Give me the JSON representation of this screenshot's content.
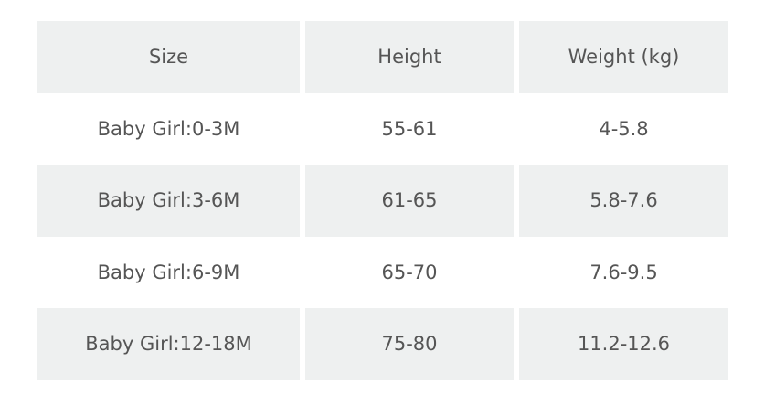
{
  "table": {
    "headers": [
      "Size",
      "Height",
      "Weight (kg)"
    ],
    "rows": [
      [
        "Baby Girl:0-3M",
        "55-61",
        "4-5.8"
      ],
      [
        "Baby Girl:3-6M",
        "61-65",
        "5.8-7.6"
      ],
      [
        "Baby Girl:6-9M",
        "65-70",
        "7.6-9.5"
      ],
      [
        "Baby Girl:12-18M",
        "75-80",
        "11.2-12.6"
      ]
    ]
  },
  "colors": {
    "shaded_row": "#eef0f0",
    "text": "#555555"
  }
}
